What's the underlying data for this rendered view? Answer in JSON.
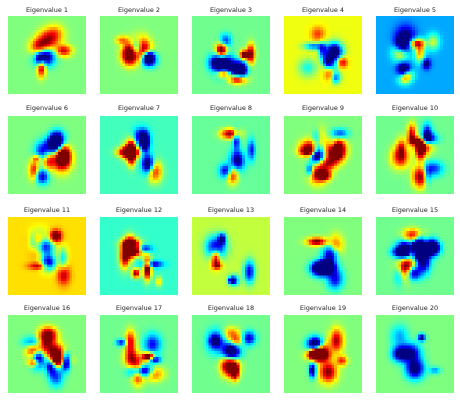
{
  "figure": {
    "panels": [
      {
        "title": "Eigenvalue 1",
        "background": "#80ff80"
      },
      {
        "title": "Eigenvalue 2",
        "background": "#80ff80"
      },
      {
        "title": "Eigenvalue 3",
        "background": "#70ff8c"
      },
      {
        "title": "Eigenvalue 4",
        "background": "#f0ff0c"
      },
      {
        "title": "Eigenvalue 5",
        "background": "#00a8ff"
      },
      {
        "title": "Eigenvalue 6",
        "background": "#80ff80"
      },
      {
        "title": "Eigenvalue 7",
        "background": "#40ffb8"
      },
      {
        "title": "Eigenvalue 8",
        "background": "#60ff96"
      },
      {
        "title": "Eigenvalue 9",
        "background": "#80ff80"
      },
      {
        "title": "Eigenvalue 10",
        "background": "#70ff8c"
      },
      {
        "title": "Eigenvalue 11",
        "background": "#ffe000"
      },
      {
        "title": "Eigenvalue 12",
        "background": "#30ffc6"
      },
      {
        "title": "Eigenvalue 13",
        "background": "#c0ff3c"
      },
      {
        "title": "Eigenvalue 14",
        "background": "#80ff80"
      },
      {
        "title": "Eigenvalue 15",
        "background": "#70ff8c"
      },
      {
        "title": "Eigenvalue 16",
        "background": "#80ff80"
      },
      {
        "title": "Eigenvalue 17",
        "background": "#70ff8c"
      },
      {
        "title": "Eigenvalue 18",
        "background": "#70ff8c"
      },
      {
        "title": "Eigenvalue 19",
        "background": "#80ff80"
      },
      {
        "title": "Eigenvalue 20",
        "background": "#80ff80"
      }
    ],
    "colormap": "jet"
  }
}
